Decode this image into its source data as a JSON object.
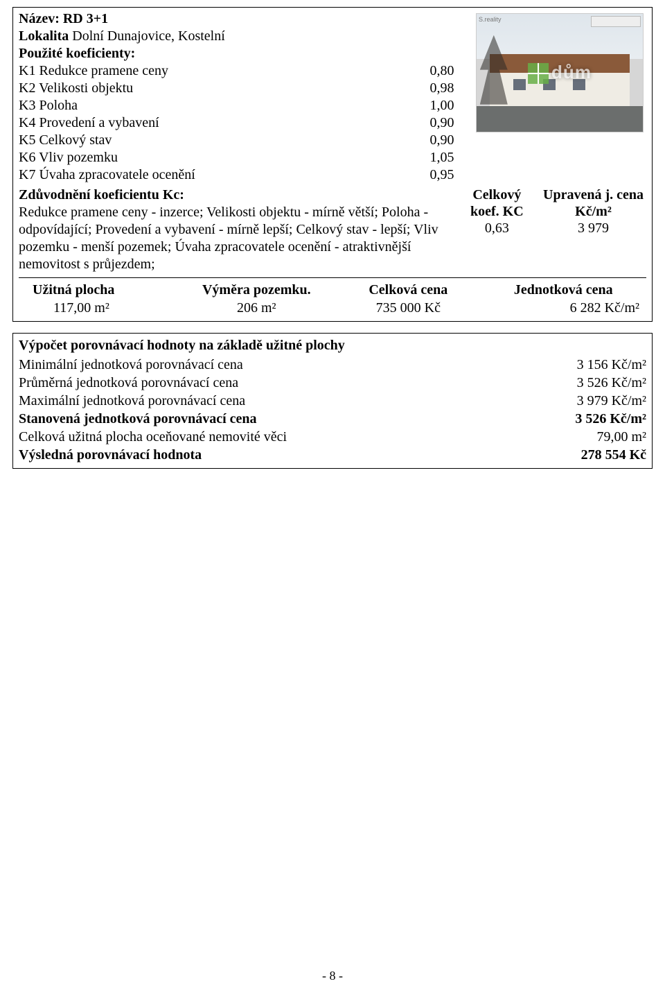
{
  "colors": {
    "text": "#000000",
    "background": "#ffffff",
    "border": "#000000"
  },
  "typography": {
    "family": "Times New Roman",
    "body_size_pt": 15
  },
  "box1": {
    "title": "Název: RD 3+1",
    "locality_label": "Lokalita",
    "locality_value": "Dolní Dunajovice, Kostelní",
    "coeff_header": "Použité koeficienty:",
    "coeffs": [
      {
        "label": "K1 Redukce pramene ceny",
        "value": "0,80"
      },
      {
        "label": "K2 Velikosti objektu",
        "value": "0,98"
      },
      {
        "label": "K3 Poloha",
        "value": "1,00"
      },
      {
        "label": "K4 Provedení a vybavení",
        "value": "0,90"
      },
      {
        "label": "K5 Celkový stav",
        "value": "0,90"
      },
      {
        "label": "K6 Vliv pozemku",
        "value": "1,05"
      },
      {
        "label": "K7 Úvaha zpracovatele ocenění",
        "value": "0,95"
      }
    ],
    "zduvod_label": "Zdůvodnění koeficientu Kc:",
    "zduvod_text": "Redukce pramene ceny - inzerce; Velikosti objektu - mírně větší; Poloha - odpovídající; Provedení a vybavení - mírně lepší; Celkový stav - lepší; Vliv pozemku - menší pozemek; Úvaha zpracovatele ocenění - atraktivnější nemovitost s průjezdem;",
    "koef_block": {
      "head1_a": "Celkový",
      "head1_b": "koef. KC",
      "head2_a": "Upravená j. cena",
      "head2_b": "Kč/m²",
      "val1": "0,63",
      "val2": "3 979"
    },
    "sumtable": {
      "headers": [
        "Užitná plocha",
        "Výměra pozemku.",
        "Celková cena",
        "Jednotková cena"
      ],
      "values": [
        "117,00 m²",
        "206 m²",
        "735 000 Kč",
        "6 282 Kč/m²"
      ]
    },
    "thumb": {
      "source": "S.reality",
      "watermark": "dům"
    }
  },
  "box2": {
    "head": "Výpočet porovnávací hodnoty na základě užitné plochy",
    "rows": [
      {
        "label": "Minimální jednotková porovnávací cena",
        "value": "3 156 Kč/m²",
        "bold": false
      },
      {
        "label": "Průměrná jednotková porovnávací cena",
        "value": "3 526 Kč/m²",
        "bold": false
      },
      {
        "label": "Maximální jednotková porovnávací cena",
        "value": "3 979 Kč/m²",
        "bold": false
      },
      {
        "label": "Stanovená jednotková porovnávací cena",
        "value": "3 526 Kč/m²",
        "bold": true
      },
      {
        "label": "Celková užitná plocha oceňované nemovité věci",
        "value": "79,00 m²",
        "bold": false
      },
      {
        "label": "Výsledná porovnávací hodnota",
        "value": "278 554 Kč",
        "bold": true
      }
    ]
  },
  "page_number": "- 8 -"
}
